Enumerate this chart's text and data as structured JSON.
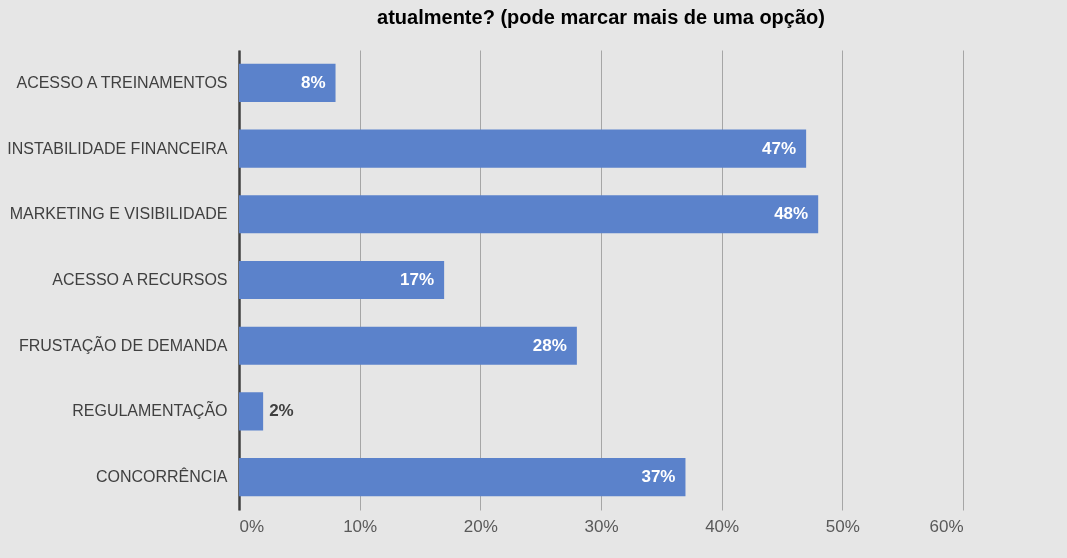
{
  "chart_data": {
    "type": "bar",
    "orientation": "horizontal",
    "title": "atualmente? (pode marcar mais de uma opção)",
    "categories": [
      "ACESSO A TREINAMENTOS",
      "INSTABILIDADE FINANCEIRA",
      "MARKETING E VISIBILIDADE",
      "ACESSO A RECURSOS",
      "FRUSTAÇÃO DE DEMANDA",
      "REGULAMENTAÇÃO",
      "CONCORRÊNCIA"
    ],
    "values": [
      8,
      47,
      48,
      17,
      28,
      2,
      37
    ],
    "color": "#5b82cb",
    "xlim": [
      0,
      60
    ],
    "xticks": [
      {
        "value": 0,
        "label": "0%"
      },
      {
        "value": 10,
        "label": "10%"
      },
      {
        "value": 20,
        "label": "20%"
      },
      {
        "value": 30,
        "label": "30%"
      },
      {
        "value": 40,
        "label": "40%"
      },
      {
        "value": 50,
        "label": "50%"
      },
      {
        "value": 60,
        "label": "60%"
      }
    ],
    "value_labels": [
      "8%",
      "47%",
      "48%",
      "17%",
      "28%",
      "2%",
      "37%"
    ],
    "grid": "x"
  }
}
